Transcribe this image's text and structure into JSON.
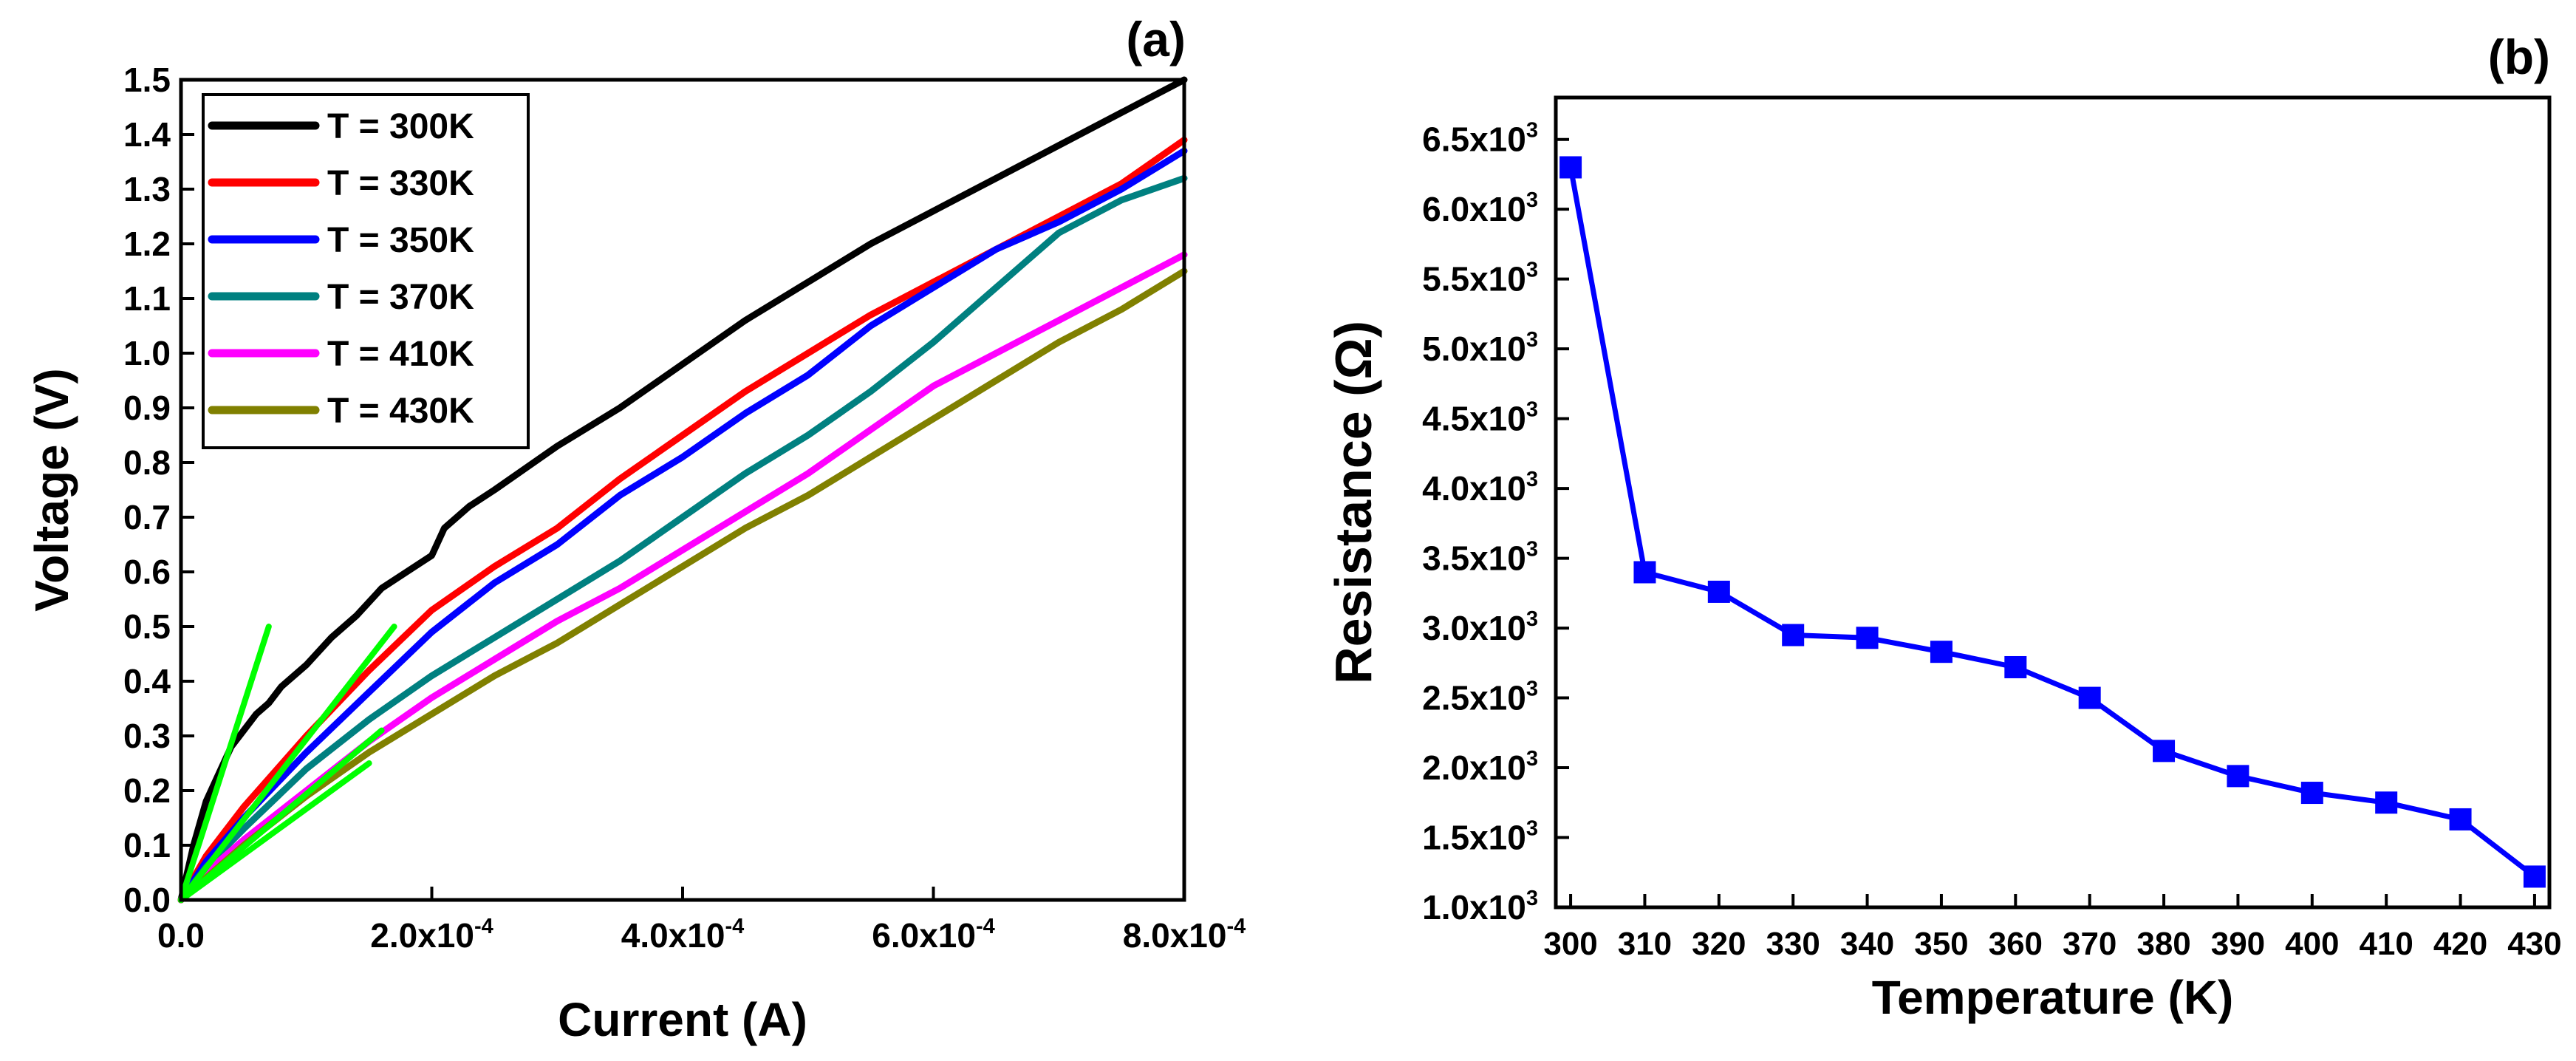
{
  "chart_data": [
    {
      "type": "line",
      "panel_label": "(a)",
      "xlabel": "Current (A)",
      "ylabel": "Voltage (V)",
      "xlim": [
        0,
        0.0008
      ],
      "ylim": [
        0,
        1.5
      ],
      "x_ticks": [
        {
          "value": 0.0,
          "mantissa": "0.0",
          "exp": ""
        },
        {
          "value": 0.0002,
          "mantissa": "2.0x10",
          "exp": "-4"
        },
        {
          "value": 0.0004,
          "mantissa": "4.0x10",
          "exp": "-4"
        },
        {
          "value": 0.0006,
          "mantissa": "6.0x10",
          "exp": "-4"
        },
        {
          "value": 0.0008,
          "mantissa": "8.0x10",
          "exp": "-4"
        }
      ],
      "y_ticks": [
        "0.0",
        "0.1",
        "0.2",
        "0.3",
        "0.4",
        "0.5",
        "0.6",
        "0.7",
        "0.8",
        "0.9",
        "1.0",
        "1.1",
        "1.2",
        "1.3",
        "1.4",
        "1.5"
      ],
      "legend_position": "top-left",
      "series": [
        {
          "name": "T = 300K",
          "color": "#000000",
          "x": [
            0,
            1e-05,
            2e-05,
            3e-05,
            4e-05,
            5e-05,
            6e-05,
            7e-05,
            8e-05,
            0.0001,
            0.00012,
            0.00014,
            0.00016,
            0.00018,
            0.0002,
            0.00021,
            0.00023,
            0.00025,
            0.0003,
            0.00035,
            0.0004,
            0.00045,
            0.0005,
            0.00055,
            0.0006,
            0.00065,
            0.0007,
            0.00075,
            0.0008
          ],
          "values": [
            0,
            0.1,
            0.18,
            0.23,
            0.28,
            0.31,
            0.34,
            0.36,
            0.39,
            0.43,
            0.48,
            0.52,
            0.57,
            0.6,
            0.63,
            0.68,
            0.72,
            0.75,
            0.83,
            0.9,
            0.98,
            1.06,
            1.13,
            1.2,
            1.26,
            1.32,
            1.38,
            1.44,
            1.5
          ]
        },
        {
          "name": "T = 330K",
          "color": "#ff0000",
          "x": [
            0,
            2e-05,
            5e-05,
            0.0001,
            0.00015,
            0.0002,
            0.00025,
            0.0003,
            0.00035,
            0.0004,
            0.00045,
            0.0005,
            0.00055,
            0.0006,
            0.00065,
            0.0007,
            0.00075,
            0.0008
          ],
          "values": [
            0,
            0.08,
            0.17,
            0.3,
            0.42,
            0.53,
            0.61,
            0.68,
            0.77,
            0.85,
            0.93,
            1.0,
            1.07,
            1.13,
            1.19,
            1.25,
            1.31,
            1.39
          ]
        },
        {
          "name": "T = 350K",
          "color": "#0000ff",
          "x": [
            0,
            2e-05,
            5e-05,
            0.0001,
            0.00015,
            0.0002,
            0.00025,
            0.0003,
            0.00035,
            0.0004,
            0.00045,
            0.0005,
            0.00055,
            0.0006,
            0.00065,
            0.0007,
            0.00075,
            0.0008
          ],
          "values": [
            0,
            0.07,
            0.15,
            0.27,
            0.38,
            0.49,
            0.58,
            0.65,
            0.74,
            0.81,
            0.89,
            0.96,
            1.05,
            1.12,
            1.19,
            1.24,
            1.3,
            1.37
          ]
        },
        {
          "name": "T = 370K",
          "color": "#008080",
          "x": [
            0,
            2e-05,
            5e-05,
            0.0001,
            0.00015,
            0.0002,
            0.00025,
            0.0003,
            0.00035,
            0.0004,
            0.00045,
            0.0005,
            0.00055,
            0.0006,
            0.00065,
            0.0007,
            0.00075,
            0.0008
          ],
          "values": [
            0,
            0.06,
            0.13,
            0.24,
            0.33,
            0.41,
            0.48,
            0.55,
            0.62,
            0.7,
            0.78,
            0.85,
            0.93,
            1.02,
            1.12,
            1.22,
            1.28,
            1.32
          ]
        },
        {
          "name": "T = 410K",
          "color": "#ff00ff",
          "x": [
            0,
            2e-05,
            5e-05,
            0.0001,
            0.00015,
            0.0002,
            0.00025,
            0.0003,
            0.00035,
            0.0004,
            0.00045,
            0.0005,
            0.00055,
            0.0006,
            0.00065,
            0.0007,
            0.00075,
            0.0008
          ],
          "values": [
            0,
            0.05,
            0.11,
            0.2,
            0.29,
            0.37,
            0.44,
            0.51,
            0.57,
            0.64,
            0.71,
            0.78,
            0.86,
            0.94,
            1.0,
            1.06,
            1.12,
            1.18
          ]
        },
        {
          "name": "T = 430K",
          "color": "#808000",
          "x": [
            0,
            2e-05,
            5e-05,
            0.0001,
            0.00015,
            0.0002,
            0.00025,
            0.0003,
            0.00035,
            0.0004,
            0.00045,
            0.0005,
            0.00055,
            0.0006,
            0.00065,
            0.0007,
            0.00075,
            0.0008
          ],
          "values": [
            0,
            0.04,
            0.1,
            0.19,
            0.27,
            0.34,
            0.41,
            0.47,
            0.54,
            0.61,
            0.68,
            0.74,
            0.81,
            0.88,
            0.95,
            1.02,
            1.08,
            1.15
          ]
        }
      ],
      "fit_lines": {
        "color": "#00ff00",
        "lines": [
          {
            "x": [
              0,
              7e-05
            ],
            "values": [
              0,
              0.5
            ]
          },
          {
            "x": [
              0,
              0.00017
            ],
            "values": [
              0,
              0.5
            ]
          },
          {
            "x": [
              0,
              0.00016
            ],
            "values": [
              0,
              0.31
            ]
          },
          {
            "x": [
              0,
              0.00015
            ],
            "values": [
              0,
              0.25
            ]
          }
        ]
      }
    },
    {
      "type": "line",
      "panel_label": "(b)",
      "xlabel": "Temperature (K)",
      "ylabel": "Resistance (Ω)",
      "xlim": [
        298,
        432
      ],
      "ylim": [
        1000,
        6800
      ],
      "x_ticks": [
        "300",
        "310",
        "320",
        "330",
        "340",
        "350",
        "360",
        "370",
        "380",
        "390",
        "400",
        "410",
        "420",
        "430"
      ],
      "y_ticks": [
        {
          "value": 1000,
          "mantissa": "1.0x10",
          "exp": "3"
        },
        {
          "value": 1500,
          "mantissa": "1.5x10",
          "exp": "3"
        },
        {
          "value": 2000,
          "mantissa": "2.0x10",
          "exp": "3"
        },
        {
          "value": 2500,
          "mantissa": "2.5x10",
          "exp": "3"
        },
        {
          "value": 3000,
          "mantissa": "3.0x10",
          "exp": "3"
        },
        {
          "value": 3500,
          "mantissa": "3.5x10",
          "exp": "3"
        },
        {
          "value": 4000,
          "mantissa": "4.0x10",
          "exp": "3"
        },
        {
          "value": 4500,
          "mantissa": "4.5x10",
          "exp": "3"
        },
        {
          "value": 5000,
          "mantissa": "5.0x10",
          "exp": "3"
        },
        {
          "value": 5500,
          "mantissa": "5.5x10",
          "exp": "3"
        },
        {
          "value": 6000,
          "mantissa": "6.0x10",
          "exp": "3"
        },
        {
          "value": 6500,
          "mantissa": "6.5x10",
          "exp": "3"
        }
      ],
      "series": [
        {
          "name": "Resistance",
          "color": "#0000ff",
          "marker": "square",
          "x": [
            300,
            310,
            320,
            330,
            340,
            350,
            360,
            370,
            380,
            390,
            400,
            410,
            420,
            430
          ],
          "values": [
            6300,
            3400,
            3260,
            2950,
            2930,
            2830,
            2720,
            2500,
            2120,
            1940,
            1820,
            1750,
            1630,
            1220
          ]
        }
      ]
    }
  ]
}
